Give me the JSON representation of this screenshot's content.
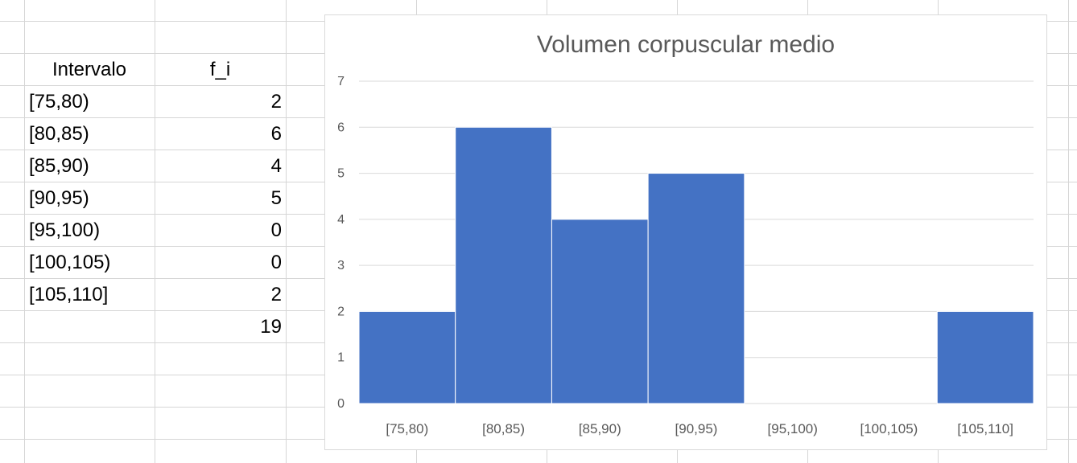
{
  "sheet": {
    "headers": {
      "interval": "Intervalo",
      "freq": "f_i"
    },
    "rows": [
      {
        "interval": "[75,80)",
        "freq": "2"
      },
      {
        "interval": "[80,85)",
        "freq": "6"
      },
      {
        "interval": "[85,90)",
        "freq": "4"
      },
      {
        "interval": "[90,95)",
        "freq": "5"
      },
      {
        "interval": "[95,100)",
        "freq": "0"
      },
      {
        "interval": "[100,105)",
        "freq": "0"
      },
      {
        "interval": "[105,110]",
        "freq": "2"
      }
    ],
    "total": "19"
  },
  "chart_data": {
    "type": "bar",
    "title": "Volumen corpuscular medio",
    "categories": [
      "[75,80)",
      "[80,85)",
      "[85,90)",
      "[90,95)",
      "[95,100)",
      "[100,105)",
      "[105,110]"
    ],
    "values": [
      2,
      6,
      4,
      5,
      0,
      0,
      2
    ],
    "ylim": [
      0,
      7
    ],
    "yticks": [
      0,
      1,
      2,
      3,
      4,
      5,
      6,
      7
    ],
    "xlabel": "",
    "ylabel": "",
    "grid": true,
    "legend": "none",
    "bar_color": "#4472c4",
    "gridline_color": "#d9d9d9"
  }
}
